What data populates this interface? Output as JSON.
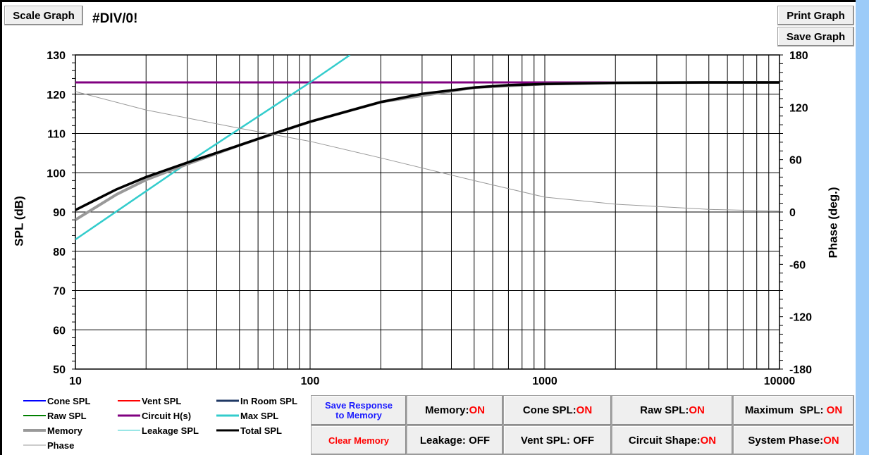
{
  "toolbar": {
    "scale_graph": "Scale Graph",
    "error_text": "#DIV/0!",
    "print_graph": "Print Graph",
    "save_graph": "Save Graph"
  },
  "chart_data": {
    "type": "line",
    "xscale": "log",
    "xlim": [
      10,
      10000
    ],
    "ylim": [
      50,
      130
    ],
    "ylim_right": [
      -180,
      180
    ],
    "ylabel": "SPL (dB)",
    "ylabel_right": "Phase (deg.)",
    "x_ticks": [
      "10",
      "100",
      "1000",
      "10000"
    ],
    "y_ticks": [
      "50",
      "60",
      "70",
      "80",
      "90",
      "100",
      "110",
      "120",
      "130"
    ],
    "y_ticks_right": [
      "-180",
      "-120",
      "-60",
      "0",
      "60",
      "120",
      "180"
    ],
    "grid": true,
    "series": [
      {
        "name": "Circuit H(s)",
        "color": "#800080",
        "axis": "left",
        "x": [
          10,
          10000
        ],
        "y": [
          123,
          123
        ]
      },
      {
        "name": "Max SPL",
        "color": "#33cccc",
        "axis": "left",
        "x": [
          10,
          30,
          100,
          148
        ],
        "y": [
          83,
          102.5,
          123,
          130
        ]
      },
      {
        "name": "Memory",
        "color": "#999999",
        "axis": "left",
        "x": [
          10,
          15,
          20,
          30,
          50,
          100,
          200,
          500,
          1000,
          2000,
          5000,
          10000
        ],
        "y": [
          88,
          94.5,
          98.2,
          102.2,
          107,
          113,
          118,
          121.7,
          122.6,
          122.9,
          123,
          123
        ]
      },
      {
        "name": "Total SPL",
        "color": "#000000",
        "axis": "left",
        "x": [
          10,
          15,
          20,
          30,
          50,
          70,
          100,
          200,
          300,
          500,
          700,
          1000,
          2000,
          5000,
          10000
        ],
        "y": [
          90.5,
          95.8,
          98.9,
          102.6,
          107,
          110,
          113,
          118,
          120.1,
          121.7,
          122.3,
          122.6,
          122.9,
          123,
          123
        ]
      },
      {
        "name": "Phase",
        "color": "#999999",
        "axis": "right",
        "x": [
          10,
          20,
          50,
          100,
          200,
          500,
          1000,
          2000,
          5000,
          10000
        ],
        "y": [
          138,
          117,
          96,
          81,
          62,
          36,
          17,
          9,
          3,
          1
        ]
      }
    ],
    "legend_entries": [
      {
        "name": "Cone SPL",
        "color": "#0000ff",
        "width": 2
      },
      {
        "name": "Vent SPL",
        "color": "#ff0000",
        "width": 2
      },
      {
        "name": "In Room SPL",
        "color": "#1f3864",
        "width": 3
      },
      {
        "name": "Raw SPL",
        "color": "#008000",
        "width": 2
      },
      {
        "name": "Circuit H(s)",
        "color": "#800080",
        "width": 3
      },
      {
        "name": "Max SPL",
        "color": "#33cccc",
        "width": 3
      },
      {
        "name": "Memory",
        "color": "#999999",
        "width": 4
      },
      {
        "name": "Leakage SPL",
        "color": "#33cccc",
        "width": 1
      },
      {
        "name": "Total SPL",
        "color": "#000000",
        "width": 3
      },
      {
        "name": "Phase",
        "color": "#999999",
        "width": 1
      }
    ]
  },
  "controls": {
    "save_response": [
      "Save Response",
      "to Memory"
    ],
    "clear_memory": "Clear Memory",
    "memory": {
      "label": "Memory: ",
      "state": "ON"
    },
    "cone_spl": {
      "label": "Cone SPL: ",
      "state": "ON"
    },
    "raw_spl": {
      "label": "Raw SPL: ",
      "state": "ON"
    },
    "maximum_spl": {
      "label": "Maximum  SPL: ",
      "state": "ON"
    },
    "leakage": {
      "label": "Leakage: OFF"
    },
    "vent_spl": {
      "label": "Vent SPL: OFF"
    },
    "circuit_shape": {
      "label": "Circuit Shape: ",
      "state": "ON"
    },
    "system_phase": {
      "label": "System Phase: ",
      "state": "ON"
    }
  }
}
